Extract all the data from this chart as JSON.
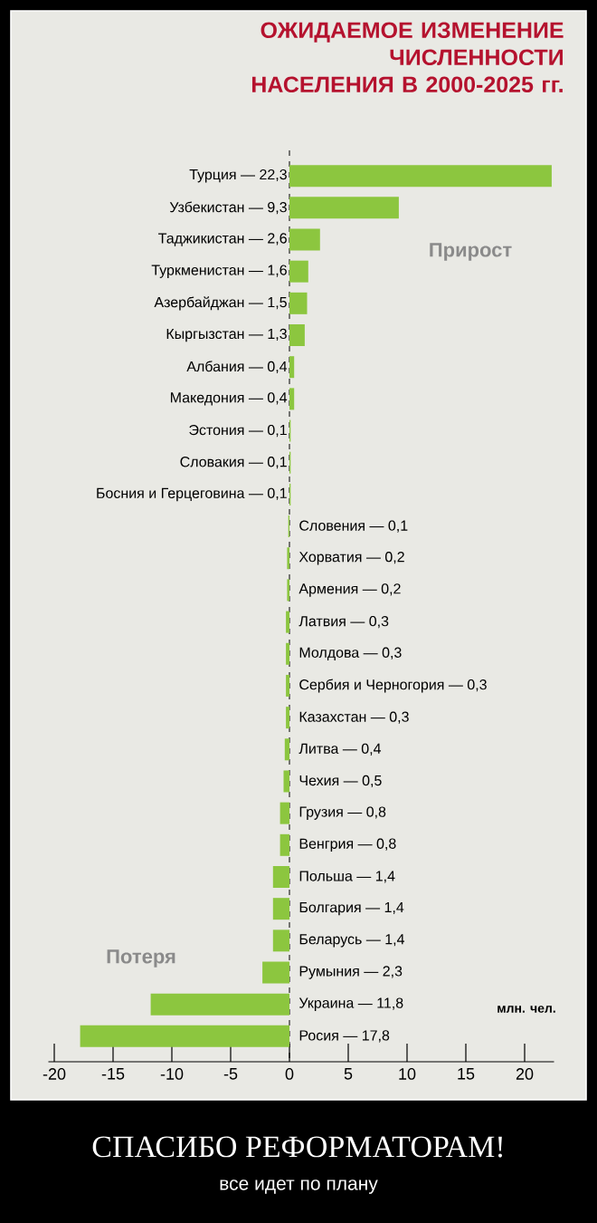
{
  "chart_data": {
    "type": "bar",
    "orientation": "horizontal",
    "title": "ОЖИДАЕМОЕ ИЗМЕНЕНИЕ ЧИСЛЕННОСТИ НАСЕЛЕНИЯ В 2000-2025 гг.",
    "categories": [
      "Турция — 22,3",
      "Узбекистан — 9,3",
      "Таджикистан — 2,6",
      "Туркменистан — 1,6",
      "Азербайджан — 1,5",
      "Кыргызстан — 1,3",
      "Албания — 0,4",
      "Македония — 0,4",
      "Эстония — 0,1",
      "Словакия — 0,1",
      "Босния и Герцеговина — 0,1",
      "Словения — 0,1",
      "Хорватия — 0,2",
      "Армения — 0,2",
      "Латвия — 0,3",
      "Молдова — 0,3",
      "Сербия и Черногория — 0,3",
      "Казахстан — 0,3",
      "Литва — 0,4",
      "Чехия — 0,5",
      "Грузия — 0,8",
      "Венгрия — 0,8",
      "Польша — 1,4",
      "Болгария — 1,4",
      "Беларусь — 1,4",
      "Румыния — 2,3",
      "Украина — 11,8",
      "Росия — 17,8"
    ],
    "values": [
      22.3,
      9.3,
      2.6,
      1.6,
      1.5,
      1.3,
      0.4,
      0.4,
      0.1,
      0.1,
      0.1,
      -0.1,
      -0.2,
      -0.2,
      -0.3,
      -0.3,
      -0.3,
      -0.3,
      -0.4,
      -0.5,
      -0.8,
      -0.8,
      -1.4,
      -1.4,
      -1.4,
      -2.3,
      -11.8,
      -17.8
    ],
    "color": "#8cc63f",
    "xlim": [
      -20.5,
      22.5
    ],
    "xticks": [
      -20,
      -15,
      -10,
      -5,
      0,
      5,
      10,
      15,
      20
    ],
    "annotations": [
      "Прирост",
      "Потеря",
      "млн. чел.",
      "СПАСИБО РЕФОРМАТОРАМ!",
      "все идет по плану"
    ]
  }
}
